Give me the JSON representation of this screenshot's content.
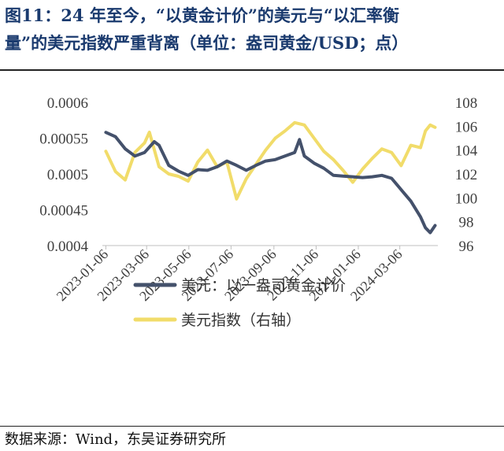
{
  "title": {
    "line1": "图11：24 年至今，“以黄金计价”的美元与“以汇率衡",
    "line2": "量”的美元指数严重背离（单位：盎司黄金/USD；点）"
  },
  "source": "数据来源：Wind，东吴证券研究所",
  "colors": {
    "usd_in_gold": "#44516b",
    "dxy": "#f1dc6a",
    "title": "#1a3a6e"
  },
  "chart_data": {
    "type": "line",
    "x_tick_labels": [
      "2023-01-06",
      "2023-03-06",
      "2023-05-06",
      "2023-07-06",
      "2023-09-06",
      "2023-11-06",
      "2024-01-06",
      "2024-03-06"
    ],
    "x_range": [
      "2023-01-01",
      "2024-04-30"
    ],
    "left_axis": {
      "ylim": [
        0.0004,
        0.0006
      ],
      "ticks": [
        "0.0004",
        "0.00045",
        "0.0005",
        "0.00055",
        "0.0006"
      ]
    },
    "right_axis": {
      "ylim": [
        96,
        108
      ],
      "ticks": [
        "96",
        "98",
        "100",
        "102",
        "104",
        "106",
        "108"
      ]
    },
    "legend_position": "bottom",
    "grid": false,
    "series": [
      {
        "name": "美元：以一盎司黄金计价",
        "axis": "left",
        "color": "#44516b",
        "points": [
          [
            "2023-01-06",
            0.000558
          ],
          [
            "2023-01-20",
            0.000552
          ],
          [
            "2023-02-03",
            0.000535
          ],
          [
            "2023-02-17",
            0.000525
          ],
          [
            "2023-03-03",
            0.00053
          ],
          [
            "2023-03-17",
            0.000545
          ],
          [
            "2023-03-24",
            0.00054
          ],
          [
            "2023-04-07",
            0.000512
          ],
          [
            "2023-04-21",
            0.000504
          ],
          [
            "2023-05-05",
            0.000498
          ],
          [
            "2023-05-19",
            0.000506
          ],
          [
            "2023-06-02",
            0.000505
          ],
          [
            "2023-06-16",
            0.00051
          ],
          [
            "2023-06-30",
            0.000518
          ],
          [
            "2023-07-14",
            0.000512
          ],
          [
            "2023-07-28",
            0.000505
          ],
          [
            "2023-08-11",
            0.000512
          ],
          [
            "2023-08-25",
            0.000518
          ],
          [
            "2023-09-08",
            0.00052
          ],
          [
            "2023-09-22",
            0.000525
          ],
          [
            "2023-10-06",
            0.00053
          ],
          [
            "2023-10-13",
            0.000548
          ],
          [
            "2023-10-20",
            0.000525
          ],
          [
            "2023-11-03",
            0.000515
          ],
          [
            "2023-11-17",
            0.000508
          ],
          [
            "2023-12-01",
            0.000498
          ],
          [
            "2023-12-15",
            0.000497
          ],
          [
            "2023-12-29",
            0.000496
          ],
          [
            "2024-01-12",
            0.000495
          ],
          [
            "2024-01-26",
            0.000496
          ],
          [
            "2024-02-09",
            0.000498
          ],
          [
            "2024-02-23",
            0.000494
          ],
          [
            "2024-03-08",
            0.000478
          ],
          [
            "2024-03-22",
            0.000462
          ],
          [
            "2024-04-05",
            0.00044
          ],
          [
            "2024-04-12",
            0.000425
          ],
          [
            "2024-04-19",
            0.000418
          ],
          [
            "2024-04-26",
            0.000428
          ]
        ]
      },
      {
        "name": "美元指数（右轴）",
        "axis": "right",
        "color": "#f1dc6a",
        "points": [
          [
            "2023-01-06",
            103.9
          ],
          [
            "2023-01-20",
            102.2
          ],
          [
            "2023-02-03",
            101.5
          ],
          [
            "2023-02-17",
            103.8
          ],
          [
            "2023-03-03",
            104.6
          ],
          [
            "2023-03-10",
            105.5
          ],
          [
            "2023-03-24",
            102.6
          ],
          [
            "2023-04-07",
            102.0
          ],
          [
            "2023-04-21",
            101.8
          ],
          [
            "2023-05-05",
            101.4
          ],
          [
            "2023-05-19",
            103.0
          ],
          [
            "2023-06-02",
            104.0
          ],
          [
            "2023-06-16",
            102.6
          ],
          [
            "2023-06-30",
            103.0
          ],
          [
            "2023-07-14",
            99.9
          ],
          [
            "2023-07-28",
            101.6
          ],
          [
            "2023-08-11",
            102.8
          ],
          [
            "2023-08-25",
            104.0
          ],
          [
            "2023-09-08",
            105.0
          ],
          [
            "2023-09-22",
            105.6
          ],
          [
            "2023-10-06",
            106.3
          ],
          [
            "2023-10-20",
            106.1
          ],
          [
            "2023-11-03",
            105.0
          ],
          [
            "2023-11-17",
            103.9
          ],
          [
            "2023-12-01",
            103.2
          ],
          [
            "2023-12-15",
            102.3
          ],
          [
            "2023-12-29",
            101.3
          ],
          [
            "2024-01-12",
            102.4
          ],
          [
            "2024-01-26",
            103.3
          ],
          [
            "2024-02-09",
            104.1
          ],
          [
            "2024-02-23",
            103.8
          ],
          [
            "2024-03-08",
            102.7
          ],
          [
            "2024-03-22",
            104.4
          ],
          [
            "2024-04-05",
            104.2
          ],
          [
            "2024-04-12",
            105.6
          ],
          [
            "2024-04-19",
            106.1
          ],
          [
            "2024-04-26",
            105.9
          ]
        ]
      }
    ]
  }
}
